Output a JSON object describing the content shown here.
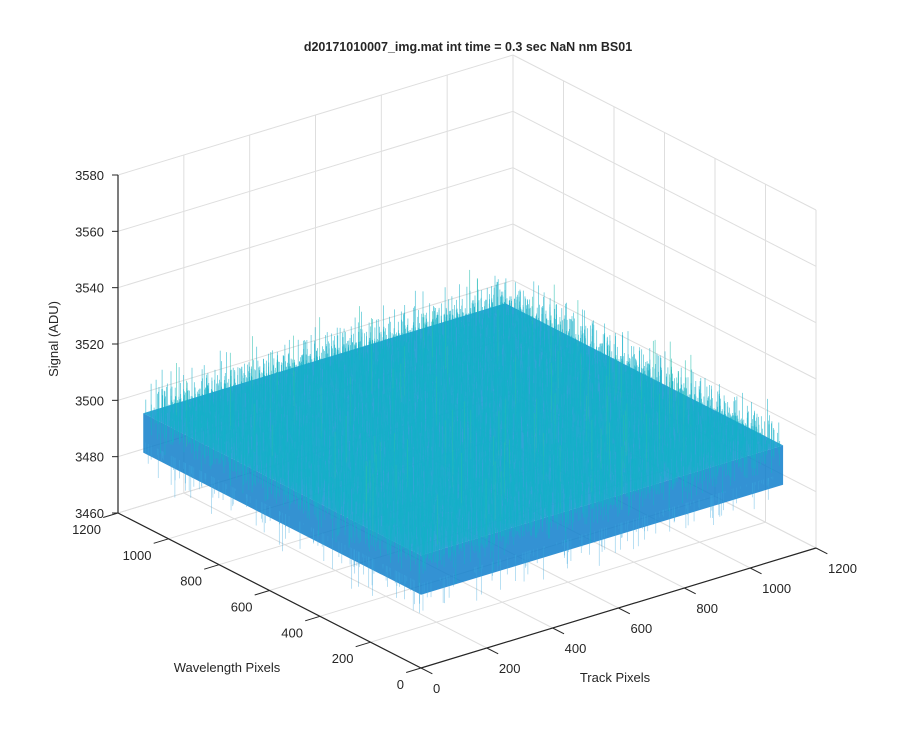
{
  "chart_data": {
    "type": "surface",
    "title": "d20171010007_img.mat int time = 0.3 sec  NaN nm BS01",
    "xlabel": "Track Pixels",
    "ylabel": "Wavelength Pixels",
    "zlabel": "Signal (ADU)",
    "xlim": [
      0,
      1200
    ],
    "ylim": [
      0,
      1200
    ],
    "zlim": [
      3460,
      3580
    ],
    "xticks": [
      0,
      200,
      400,
      600,
      800,
      1000,
      1200
    ],
    "yticks": [
      0,
      200,
      400,
      600,
      800,
      1000,
      1200
    ],
    "zticks": [
      3460,
      3480,
      3500,
      3520,
      3540,
      3560,
      3580
    ],
    "grid": true,
    "surface": {
      "x_range": [
        0,
        1100
      ],
      "y_range": [
        0,
        1100
      ],
      "mean_level": 3500,
      "noise_min": 3470,
      "noise_max": 3560,
      "colormap": [
        "#0b6fc4",
        "#1a94d8",
        "#15b0c8",
        "#27bfae",
        "#6cc38a",
        "#a8c65c"
      ]
    }
  }
}
